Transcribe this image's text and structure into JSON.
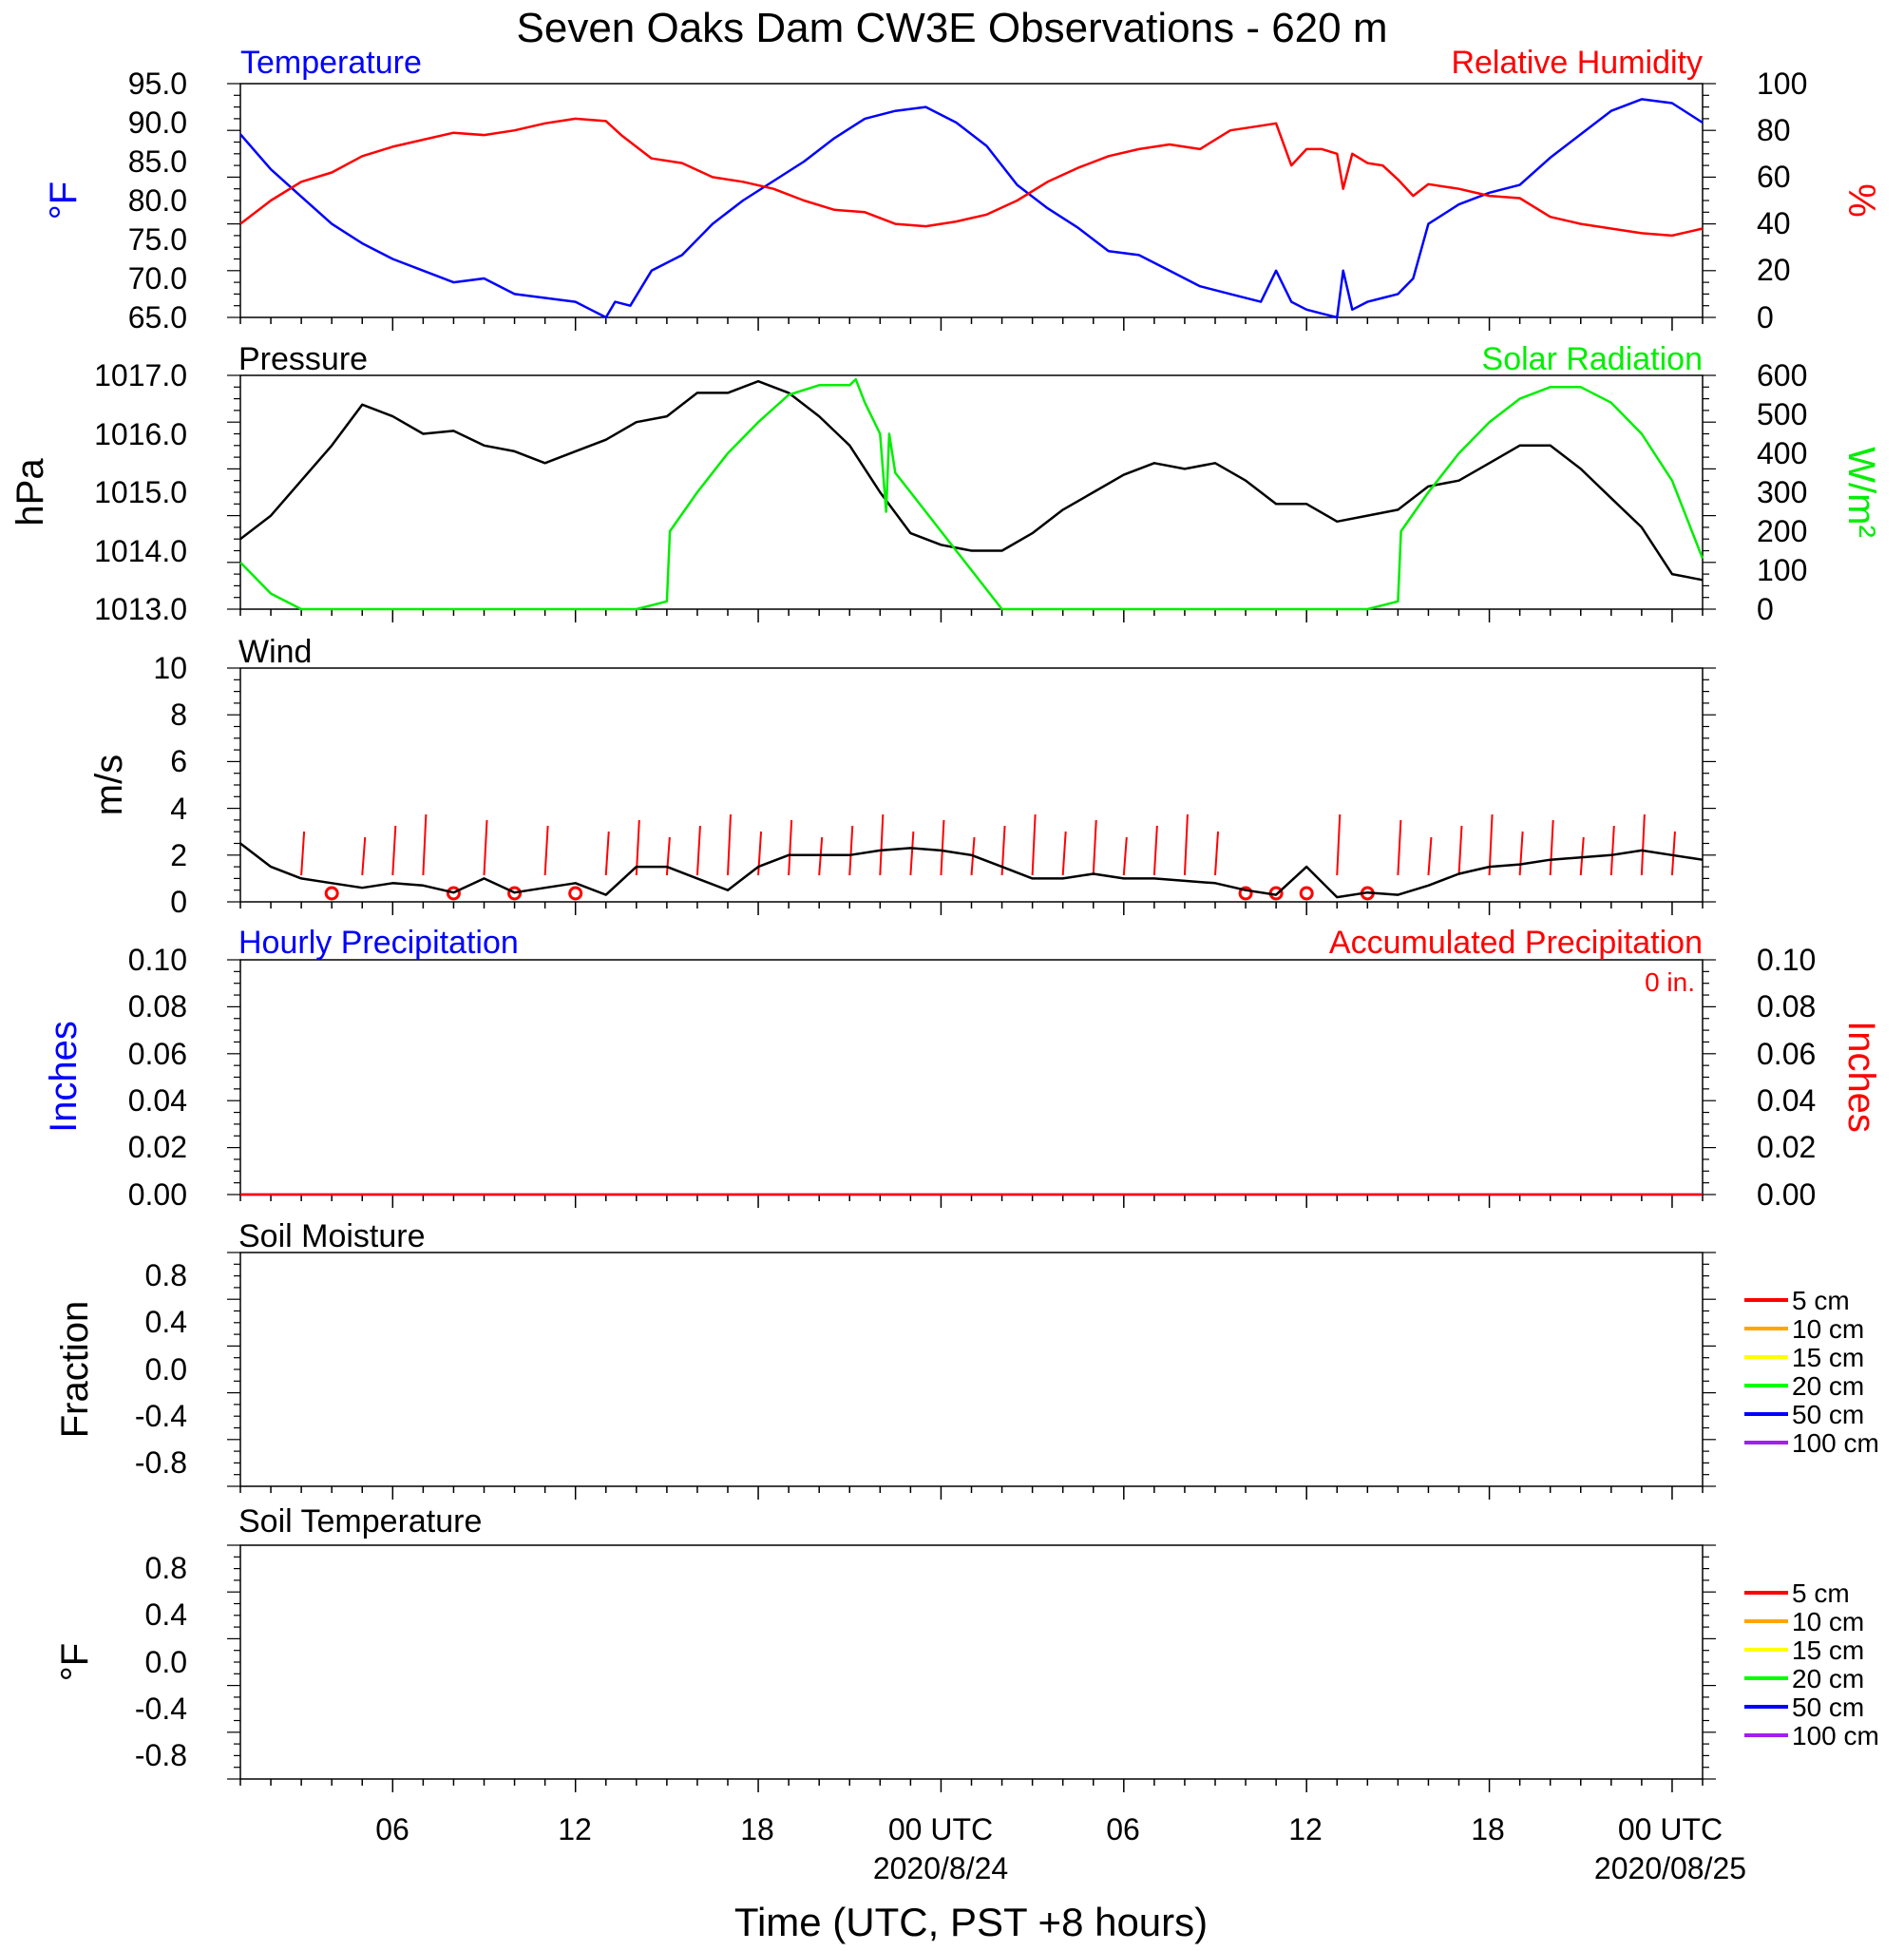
{
  "title": "Seven Oaks Dam CW3E Observations - 620 m",
  "xlabel": "Time (UTC, PST +8 hours)",
  "time_axis": {
    "ticks": [
      {
        "h": 6,
        "label": "06"
      },
      {
        "h": 12,
        "label": "12"
      },
      {
        "h": 18,
        "label": "18"
      },
      {
        "h": 24,
        "label": "00 UTC",
        "date": "2020/8/24"
      },
      {
        "h": 30,
        "label": "06"
      },
      {
        "h": 36,
        "label": "12"
      },
      {
        "h": 42,
        "label": "18"
      },
      {
        "h": 48,
        "label": "00 UTC",
        "date": "2020/08/25"
      }
    ]
  },
  "colors": {
    "temperature": "#0000ff",
    "humidity": "#ff0000",
    "pressure": "#000000",
    "solar": "#00ee00",
    "wind": "#000000",
    "wind_barb": "#ff0000",
    "hourly_precip": "#0000ff",
    "accum_precip": "#ff0000"
  },
  "chart_data": [
    {
      "panel": "temperature_humidity",
      "type": "line",
      "left_label": "Temperature",
      "right_label": "Relative Humidity",
      "left_unit": "°F",
      "right_unit": "%",
      "left_ticks": [
        "95.0",
        "90.0",
        "85.0",
        "80.0",
        "75.0",
        "70.0",
        "65.0"
      ],
      "right_ticks": [
        "100",
        "80",
        "60",
        "40",
        "20",
        "0"
      ],
      "ylim_left": [
        65,
        95
      ],
      "ylim_right": [
        0,
        100
      ],
      "series": [
        {
          "name": "Temperature",
          "axis": "left",
          "color": "#0000ff",
          "x": [
            1,
            2,
            3,
            4,
            5,
            6,
            7,
            8,
            9,
            10,
            11,
            12,
            12.5,
            13,
            13.3,
            13.8,
            14.5,
            15.5,
            16.5,
            17.5,
            18.5,
            19.5,
            20.5,
            21.5,
            22.5,
            23.5,
            24.5,
            25.5,
            26.5,
            27.5,
            28.5,
            29.5,
            30.5,
            31.5,
            32.5,
            33.5,
            34.5,
            35,
            35.5,
            36,
            36.5,
            37,
            37.2,
            37.5,
            38,
            38.5,
            39,
            39.5,
            40,
            41,
            42,
            43,
            44,
            45,
            46,
            47,
            48,
            49
          ],
          "y": [
            88.5,
            84,
            80.5,
            77,
            74.5,
            72.5,
            71,
            69.5,
            70,
            68,
            67.5,
            67,
            66,
            65,
            67,
            66.5,
            71,
            73,
            77,
            80,
            82.5,
            85,
            88,
            90.5,
            91.5,
            92,
            90,
            87,
            82,
            79,
            76.5,
            73.5,
            73,
            71,
            69,
            68,
            67,
            71,
            67,
            66,
            65.5,
            65,
            71,
            66,
            67,
            67.5,
            68,
            70,
            77,
            79.5,
            81,
            82,
            85.5,
            88.5,
            91.5,
            93,
            92.5,
            90
          ]
        },
        {
          "name": "Relative Humidity",
          "axis": "right",
          "color": "#ff0000",
          "x": [
            1,
            2,
            3,
            4,
            5,
            6,
            7,
            8,
            9,
            10,
            11,
            12,
            13,
            13.5,
            14.5,
            15.5,
            16.5,
            17.5,
            18.5,
            19.5,
            20.5,
            21.5,
            22.5,
            23.5,
            24.5,
            25.5,
            26.5,
            27.5,
            28.5,
            29.5,
            30.5,
            31.5,
            32.5,
            33.5,
            34.5,
            35,
            35.5,
            36,
            36.5,
            37,
            37.2,
            37.5,
            38,
            38.5,
            39,
            39.5,
            40,
            41,
            42,
            43,
            44,
            45,
            46,
            47,
            48,
            49
          ],
          "y": [
            40,
            50,
            58,
            62,
            69,
            73,
            76,
            79,
            78,
            80,
            83,
            85,
            84,
            78,
            68,
            66,
            60,
            58,
            55,
            50,
            46,
            45,
            40,
            39,
            41,
            44,
            50,
            58,
            64,
            69,
            72,
            74,
            72,
            80,
            82,
            83,
            65,
            72,
            72,
            70,
            55,
            70,
            66,
            65,
            59,
            52,
            57,
            55,
            52,
            51,
            43,
            40,
            38,
            36,
            35,
            38
          ]
        }
      ]
    },
    {
      "panel": "pressure_solar",
      "type": "line",
      "left_label": "Pressure",
      "right_label": "Solar Radiation",
      "left_unit": "hPa",
      "right_unit": "W/m²",
      "left_ticks": [
        "1017.0",
        "1016.0",
        "1015.0",
        "1014.0",
        "1013.0"
      ],
      "right_ticks": [
        "600",
        "500",
        "400",
        "300",
        "200",
        "100",
        "0"
      ],
      "ylim_left": [
        1013,
        1017
      ],
      "ylim_right": [
        0,
        600
      ],
      "series": [
        {
          "name": "Pressure",
          "axis": "left",
          "color": "#000000",
          "x": [
            1,
            2,
            3,
            4,
            5,
            6,
            7,
            8,
            9,
            10,
            11,
            12,
            13,
            14,
            15,
            16,
            17,
            18,
            19,
            20,
            21,
            22,
            23,
            24,
            25,
            26,
            27,
            28,
            29,
            30,
            31,
            32,
            33,
            34,
            35,
            36,
            37,
            38,
            39,
            40,
            41,
            42,
            43,
            44,
            45,
            46,
            47,
            48,
            49
          ],
          "y": [
            1014.2,
            1014.6,
            1015.2,
            1015.8,
            1016.5,
            1016.3,
            1016.0,
            1016.05,
            1015.8,
            1015.7,
            1015.5,
            1015.7,
            1015.9,
            1016.2,
            1016.3,
            1016.7,
            1016.7,
            1016.9,
            1016.7,
            1016.3,
            1015.8,
            1015.0,
            1014.3,
            1014.1,
            1014.0,
            1014.0,
            1014.3,
            1014.7,
            1015.0,
            1015.3,
            1015.5,
            1015.4,
            1015.5,
            1015.2,
            1014.8,
            1014.8,
            1014.5,
            1014.6,
            1014.7,
            1015.1,
            1015.2,
            1015.5,
            1015.8,
            1015.8,
            1015.4,
            1014.9,
            1014.4,
            1013.6,
            1013.5
          ]
        },
        {
          "name": "Solar Radiation",
          "axis": "right",
          "color": "#00ee00",
          "x": [
            1,
            2,
            3,
            10,
            14,
            15,
            15.1,
            16,
            17,
            18,
            19,
            20,
            21,
            21.2,
            21.5,
            22,
            22.2,
            22.3,
            22.5,
            23,
            24,
            25,
            26,
            26,
            27,
            30,
            35,
            38,
            39,
            39.1,
            40,
            41,
            42,
            43,
            44,
            45,
            46,
            47,
            48,
            49
          ],
          "y": [
            120,
            40,
            0,
            0,
            0,
            20,
            200,
            300,
            400,
            480,
            550,
            575,
            575,
            590,
            530,
            450,
            250,
            450,
            350,
            300,
            200,
            100,
            0,
            0,
            0,
            0,
            0,
            0,
            20,
            200,
            300,
            400,
            480,
            540,
            570,
            570,
            530,
            450,
            330,
            130
          ]
        }
      ]
    },
    {
      "panel": "wind",
      "type": "line",
      "label": "Wind",
      "unit": "m/s",
      "left_ticks": [
        "10",
        "8",
        "6",
        "4",
        "2",
        "0"
      ],
      "ylim": [
        0,
        10
      ],
      "series": [
        {
          "name": "Wind",
          "color": "#000000",
          "x": [
            1,
            2,
            3,
            4,
            5,
            6,
            7,
            8,
            9,
            10,
            11,
            12,
            13,
            14,
            15,
            16,
            17,
            18,
            19,
            20,
            21,
            22,
            23,
            24,
            25,
            26,
            27,
            28,
            29,
            30,
            31,
            32,
            33,
            34,
            35,
            36,
            37,
            38,
            39,
            40,
            41,
            42,
            43,
            44,
            45,
            46,
            47,
            48,
            49
          ],
          "y": [
            2.5,
            1.5,
            1.0,
            0.8,
            0.6,
            0.8,
            0.7,
            0.4,
            1.0,
            0.4,
            0.6,
            0.8,
            0.3,
            1.5,
            1.5,
            1.0,
            0.5,
            1.5,
            2.0,
            2.0,
            2.0,
            2.2,
            2.3,
            2.2,
            2.0,
            1.5,
            1.0,
            1.0,
            1.2,
            1.0,
            1.0,
            0.9,
            0.8,
            0.5,
            0.3,
            1.5,
            0.2,
            0.4,
            0.3,
            0.7,
            1.2,
            1.5,
            1.6,
            1.8,
            1.9,
            2.0,
            2.2,
            2.0,
            1.8
          ]
        }
      ],
      "barb_hours": [
        3,
        4,
        5,
        6,
        7,
        8,
        9,
        10,
        11,
        12,
        13,
        14,
        15,
        16,
        17,
        18,
        19,
        20,
        21,
        22,
        23,
        24,
        25,
        26,
        27,
        28,
        29,
        30,
        31,
        32,
        33,
        34,
        35,
        36,
        37,
        38,
        39,
        40,
        41,
        42,
        43,
        44,
        45,
        46,
        47,
        48
      ],
      "calm_hours": [
        4,
        8,
        10,
        12,
        34,
        35,
        36,
        38
      ]
    },
    {
      "panel": "precipitation",
      "type": "line",
      "left_label": "Hourly Precipitation",
      "right_label": "Accumulated Precipitation",
      "total_text": "0 in.",
      "left_unit": "Inches",
      "right_unit": "Inches",
      "left_ticks": [
        "0.10",
        "0.08",
        "0.06",
        "0.04",
        "0.02",
        "0.00"
      ],
      "right_ticks": [
        "0.10",
        "0.08",
        "0.06",
        "0.04",
        "0.02",
        "0.00"
      ],
      "ylim": [
        0,
        0.1
      ],
      "series": [
        {
          "name": "Hourly Precipitation",
          "color": "#0000ff",
          "x": [
            1,
            49
          ],
          "y": [
            0,
            0
          ]
        },
        {
          "name": "Accumulated Precipitation",
          "color": "#ff0000",
          "x": [
            1,
            49
          ],
          "y": [
            0,
            0
          ]
        }
      ]
    },
    {
      "panel": "soil_moisture",
      "type": "line",
      "label": "Soil Moisture",
      "unit": "Fraction",
      "left_ticks": [
        "0.8",
        "0.4",
        "0.0",
        "-0.4",
        "-0.8"
      ],
      "ylim": [
        -1,
        1
      ],
      "legend": [
        {
          "name": "5 cm",
          "color": "#ff0000"
        },
        {
          "name": "10 cm",
          "color": "#ffa500"
        },
        {
          "name": "15 cm",
          "color": "#ffff00"
        },
        {
          "name": "20 cm",
          "color": "#00ff00"
        },
        {
          "name": "50 cm",
          "color": "#0000ff"
        },
        {
          "name": "100 cm",
          "color": "#a020f0"
        }
      ],
      "series": []
    },
    {
      "panel": "soil_temperature",
      "type": "line",
      "label": "Soil Temperature",
      "unit": "°F",
      "left_ticks": [
        "0.8",
        "0.4",
        "0.0",
        "-0.4",
        "-0.8"
      ],
      "ylim": [
        -1,
        1
      ],
      "legend": [
        {
          "name": "5 cm",
          "color": "#ff0000"
        },
        {
          "name": "10 cm",
          "color": "#ffa500"
        },
        {
          "name": "15 cm",
          "color": "#ffff00"
        },
        {
          "name": "20 cm",
          "color": "#00ff00"
        },
        {
          "name": "50 cm",
          "color": "#0000ff"
        },
        {
          "name": "100 cm",
          "color": "#a020f0"
        }
      ],
      "series": []
    }
  ]
}
